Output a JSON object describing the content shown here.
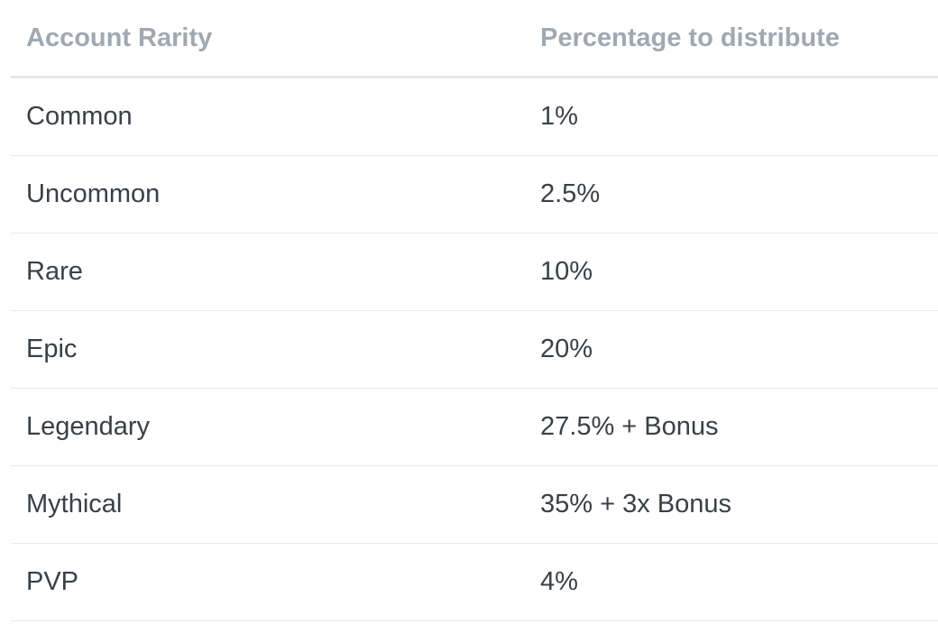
{
  "table": {
    "headers": [
      "Account Rarity",
      "Percentage to distribute"
    ],
    "rows": [
      {
        "rarity": "Common",
        "percentage": "1%"
      },
      {
        "rarity": "Uncommon",
        "percentage": "2.5%"
      },
      {
        "rarity": "Rare",
        "percentage": "10%"
      },
      {
        "rarity": "Epic",
        "percentage": "20%"
      },
      {
        "rarity": "Legendary",
        "percentage": "27.5% + Bonus"
      },
      {
        "rarity": "Mythical",
        "percentage": "35% + 3x Bonus"
      },
      {
        "rarity": "PVP",
        "percentage": "4%"
      }
    ]
  },
  "colors": {
    "header_text": "#a0a8b2",
    "body_text": "#3a4048",
    "divider": "#e6e9ec",
    "background": "#ffffff"
  }
}
